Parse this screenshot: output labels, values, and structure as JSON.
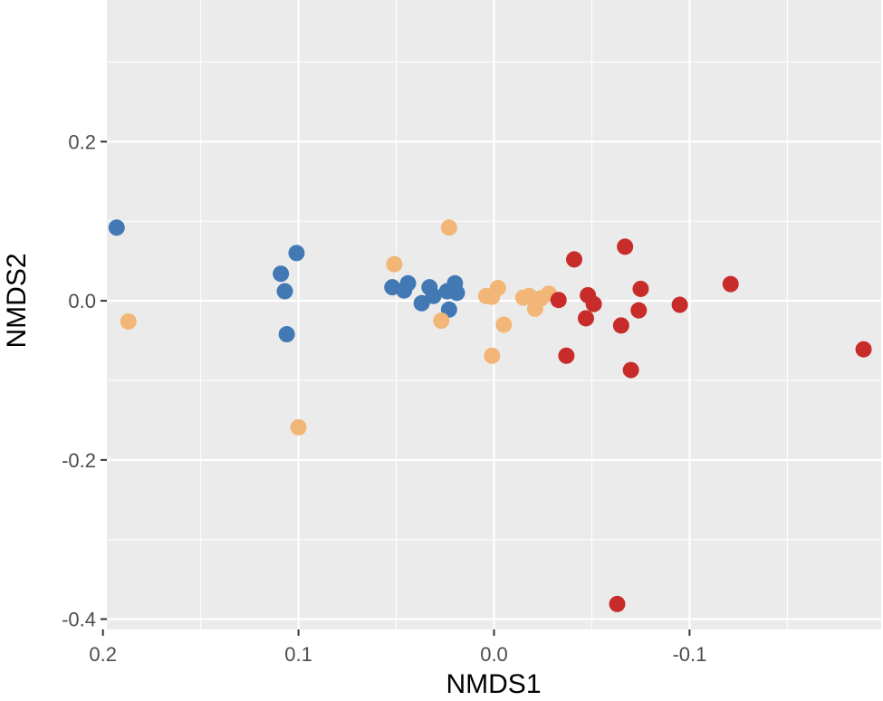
{
  "chart_data": {
    "type": "scatter",
    "title": "",
    "xlabel": "NMDS1",
    "ylabel": "NMDS2",
    "x_reversed": true,
    "xlim": [
      0.198,
      -0.198
    ],
    "ylim": [
      -0.413,
      0.378
    ],
    "grid": true,
    "legend": "none",
    "x_ticks": [
      {
        "value": 0.2,
        "label": "0.2"
      },
      {
        "value": 0.1,
        "label": "0.1"
      },
      {
        "value": 0.0,
        "label": "0.0"
      },
      {
        "value": -0.1,
        "label": "-0.1"
      }
    ],
    "x_minor_ticks": [
      0.15,
      0.05,
      -0.05,
      -0.15
    ],
    "y_ticks": [
      {
        "value": 0.2,
        "label": "0.2"
      },
      {
        "value": 0.0,
        "label": "0.0"
      },
      {
        "value": -0.2,
        "label": "-0.2"
      },
      {
        "value": -0.4,
        "label": "-0.4"
      }
    ],
    "y_minor_ticks": [
      0.3,
      0.1,
      -0.1,
      -0.3
    ],
    "background": "#ebebeb",
    "grid_color": "#ffffff",
    "series": [
      {
        "color": "#4279b5",
        "points": [
          {
            "x": 0.193,
            "y": 0.092
          },
          {
            "x": 0.101,
            "y": 0.06
          },
          {
            "x": 0.109,
            "y": 0.034
          },
          {
            "x": 0.107,
            "y": 0.012
          },
          {
            "x": 0.106,
            "y": -0.042
          },
          {
            "x": 0.052,
            "y": 0.017
          },
          {
            "x": 0.046,
            "y": 0.013
          },
          {
            "x": 0.044,
            "y": 0.022
          },
          {
            "x": 0.037,
            "y": -0.003
          },
          {
            "x": 0.033,
            "y": 0.017
          },
          {
            "x": 0.031,
            "y": 0.006
          },
          {
            "x": 0.024,
            "y": 0.012
          },
          {
            "x": 0.023,
            "y": -0.011
          },
          {
            "x": 0.02,
            "y": 0.022
          },
          {
            "x": 0.019,
            "y": 0.01
          }
        ]
      },
      {
        "color": "#f2b677",
        "points": [
          {
            "x": 0.187,
            "y": -0.026
          },
          {
            "x": 0.051,
            "y": 0.046
          },
          {
            "x": 0.023,
            "y": 0.092
          },
          {
            "x": 0.027,
            "y": -0.025
          },
          {
            "x": 0.004,
            "y": 0.006
          },
          {
            "x": 0.001,
            "y": 0.005
          },
          {
            "x": -0.002,
            "y": 0.016
          },
          {
            "x": -0.005,
            "y": -0.03
          },
          {
            "x": 0.001,
            "y": -0.069
          },
          {
            "x": 0.1,
            "y": -0.159
          },
          {
            "x": -0.015,
            "y": 0.004
          },
          {
            "x": -0.018,
            "y": 0.006
          },
          {
            "x": -0.021,
            "y": -0.01
          },
          {
            "x": -0.024,
            "y": 0.003
          },
          {
            "x": -0.028,
            "y": 0.009
          }
        ]
      },
      {
        "color": "#c72c2a",
        "points": [
          {
            "x": -0.033,
            "y": 0.001
          },
          {
            "x": -0.041,
            "y": 0.052
          },
          {
            "x": -0.048,
            "y": 0.007
          },
          {
            "x": -0.051,
            "y": -0.004
          },
          {
            "x": -0.047,
            "y": -0.022
          },
          {
            "x": -0.037,
            "y": -0.069
          },
          {
            "x": -0.067,
            "y": 0.068
          },
          {
            "x": -0.065,
            "y": -0.031
          },
          {
            "x": -0.074,
            "y": -0.012
          },
          {
            "x": -0.075,
            "y": 0.015
          },
          {
            "x": -0.07,
            "y": -0.087
          },
          {
            "x": -0.095,
            "y": -0.005
          },
          {
            "x": -0.121,
            "y": 0.021
          },
          {
            "x": -0.189,
            "y": -0.061
          },
          {
            "x": -0.063,
            "y": -0.381
          }
        ]
      }
    ]
  }
}
